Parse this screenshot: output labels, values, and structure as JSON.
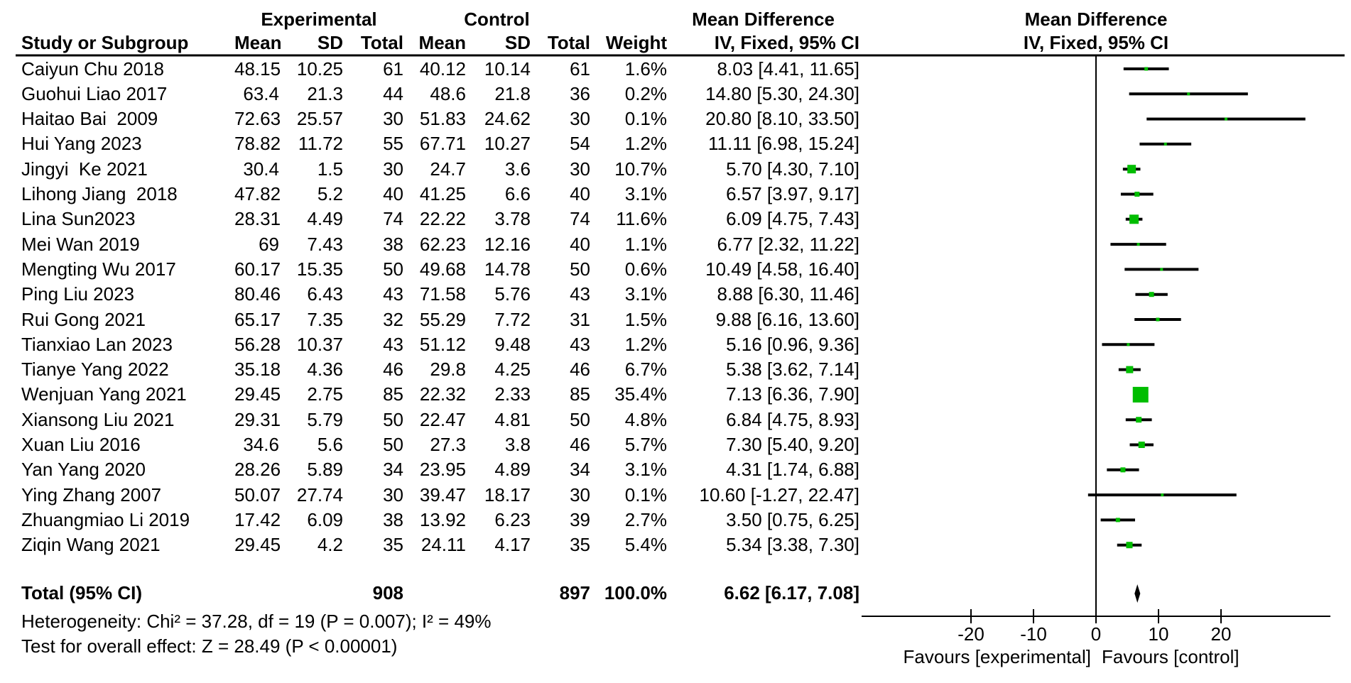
{
  "chart_data": {
    "type": "forest",
    "effect_measure": "Mean Difference",
    "model": "IV, Fixed, 95% CI",
    "headers": {
      "study": "Study or Subgroup",
      "group_experimental": "Experimental",
      "group_control": "Control",
      "mean": "Mean",
      "sd": "SD",
      "total": "Total",
      "weight": "Weight",
      "effect": "Mean Difference",
      "method_ci": "IV, Fixed, 95% CI"
    },
    "studies": [
      {
        "name": "Caiyun Chu 2018",
        "exp_mean": "48.15",
        "exp_sd": "10.25",
        "exp_total": "61",
        "ctl_mean": "40.12",
        "ctl_sd": "10.14",
        "ctl_total": "61",
        "weight": "1.6%",
        "ci_text": "8.03 [4.41, 11.65]",
        "md": 8.03,
        "lo": 4.41,
        "hi": 11.65,
        "weight_pct": 1.6
      },
      {
        "name": "Guohui Liao 2017",
        "exp_mean": "63.4",
        "exp_sd": "21.3",
        "exp_total": "44",
        "ctl_mean": "48.6",
        "ctl_sd": "21.8",
        "ctl_total": "36",
        "weight": "0.2%",
        "ci_text": "14.80 [5.30, 24.30]",
        "md": 14.8,
        "lo": 5.3,
        "hi": 24.3,
        "weight_pct": 0.2
      },
      {
        "name": "Haitao Bai  2009",
        "exp_mean": "72.63",
        "exp_sd": "25.57",
        "exp_total": "30",
        "ctl_mean": "51.83",
        "ctl_sd": "24.62",
        "ctl_total": "30",
        "weight": "0.1%",
        "ci_text": "20.80 [8.10, 33.50]",
        "md": 20.8,
        "lo": 8.1,
        "hi": 33.5,
        "weight_pct": 0.1
      },
      {
        "name": "Hui Yang 2023",
        "exp_mean": "78.82",
        "exp_sd": "11.72",
        "exp_total": "55",
        "ctl_mean": "67.71",
        "ctl_sd": "10.27",
        "ctl_total": "54",
        "weight": "1.2%",
        "ci_text": "11.11 [6.98, 15.24]",
        "md": 11.11,
        "lo": 6.98,
        "hi": 15.24,
        "weight_pct": 1.2
      },
      {
        "name": "Jingyi  Ke 2021",
        "exp_mean": "30.4",
        "exp_sd": "1.5",
        "exp_total": "30",
        "ctl_mean": "24.7",
        "ctl_sd": "3.6",
        "ctl_total": "30",
        "weight": "10.7%",
        "ci_text": "5.70 [4.30, 7.10]",
        "md": 5.7,
        "lo": 4.3,
        "hi": 7.1,
        "weight_pct": 10.7
      },
      {
        "name": "Lihong Jiang  2018",
        "exp_mean": "47.82",
        "exp_sd": "5.2",
        "exp_total": "40",
        "ctl_mean": "41.25",
        "ctl_sd": "6.6",
        "ctl_total": "40",
        "weight": "3.1%",
        "ci_text": "6.57 [3.97, 9.17]",
        "md": 6.57,
        "lo": 3.97,
        "hi": 9.17,
        "weight_pct": 3.1
      },
      {
        "name": "Lina Sun2023",
        "exp_mean": "28.31",
        "exp_sd": "4.49",
        "exp_total": "74",
        "ctl_mean": "22.22",
        "ctl_sd": "3.78",
        "ctl_total": "74",
        "weight": "11.6%",
        "ci_text": "6.09 [4.75, 7.43]",
        "md": 6.09,
        "lo": 4.75,
        "hi": 7.43,
        "weight_pct": 11.6
      },
      {
        "name": "Mei Wan 2019",
        "exp_mean": "69",
        "exp_sd": "7.43",
        "exp_total": "38",
        "ctl_mean": "62.23",
        "ctl_sd": "12.16",
        "ctl_total": "40",
        "weight": "1.1%",
        "ci_text": "6.77 [2.32, 11.22]",
        "md": 6.77,
        "lo": 2.32,
        "hi": 11.22,
        "weight_pct": 1.1
      },
      {
        "name": "Mengting Wu 2017",
        "exp_mean": "60.17",
        "exp_sd": "15.35",
        "exp_total": "50",
        "ctl_mean": "49.68",
        "ctl_sd": "14.78",
        "ctl_total": "50",
        "weight": "0.6%",
        "ci_text": "10.49 [4.58, 16.40]",
        "md": 10.49,
        "lo": 4.58,
        "hi": 16.4,
        "weight_pct": 0.6
      },
      {
        "name": "Ping Liu 2023",
        "exp_mean": "80.46",
        "exp_sd": "6.43",
        "exp_total": "43",
        "ctl_mean": "71.58",
        "ctl_sd": "5.76",
        "ctl_total": "43",
        "weight": "3.1%",
        "ci_text": "8.88 [6.30, 11.46]",
        "md": 8.88,
        "lo": 6.3,
        "hi": 11.46,
        "weight_pct": 3.1
      },
      {
        "name": "Rui Gong 2021",
        "exp_mean": "65.17",
        "exp_sd": "7.35",
        "exp_total": "32",
        "ctl_mean": "55.29",
        "ctl_sd": "7.72",
        "ctl_total": "31",
        "weight": "1.5%",
        "ci_text": "9.88 [6.16, 13.60]",
        "md": 9.88,
        "lo": 6.16,
        "hi": 13.6,
        "weight_pct": 1.5
      },
      {
        "name": "Tianxiao Lan 2023",
        "exp_mean": "56.28",
        "exp_sd": "10.37",
        "exp_total": "43",
        "ctl_mean": "51.12",
        "ctl_sd": "9.48",
        "ctl_total": "43",
        "weight": "1.2%",
        "ci_text": "5.16 [0.96, 9.36]",
        "md": 5.16,
        "lo": 0.96,
        "hi": 9.36,
        "weight_pct": 1.2
      },
      {
        "name": "Tianye Yang 2022",
        "exp_mean": "35.18",
        "exp_sd": "4.36",
        "exp_total": "46",
        "ctl_mean": "29.8",
        "ctl_sd": "4.25",
        "ctl_total": "46",
        "weight": "6.7%",
        "ci_text": "5.38 [3.62, 7.14]",
        "md": 5.38,
        "lo": 3.62,
        "hi": 7.14,
        "weight_pct": 6.7
      },
      {
        "name": "Wenjuan Yang 2021",
        "exp_mean": "29.45",
        "exp_sd": "2.75",
        "exp_total": "85",
        "ctl_mean": "22.32",
        "ctl_sd": "2.33",
        "ctl_total": "85",
        "weight": "35.4%",
        "ci_text": "7.13 [6.36, 7.90]",
        "md": 7.13,
        "lo": 6.36,
        "hi": 7.9,
        "weight_pct": 35.4
      },
      {
        "name": "Xiansong Liu 2021",
        "exp_mean": "29.31",
        "exp_sd": "5.79",
        "exp_total": "50",
        "ctl_mean": "22.47",
        "ctl_sd": "4.81",
        "ctl_total": "50",
        "weight": "4.8%",
        "ci_text": "6.84 [4.75, 8.93]",
        "md": 6.84,
        "lo": 4.75,
        "hi": 8.93,
        "weight_pct": 4.8
      },
      {
        "name": "Xuan Liu 2016",
        "exp_mean": "34.6",
        "exp_sd": "5.6",
        "exp_total": "50",
        "ctl_mean": "27.3",
        "ctl_sd": "3.8",
        "ctl_total": "46",
        "weight": "5.7%",
        "ci_text": "7.30 [5.40, 9.20]",
        "md": 7.3,
        "lo": 5.4,
        "hi": 9.2,
        "weight_pct": 5.7
      },
      {
        "name": "Yan Yang 2020",
        "exp_mean": "28.26",
        "exp_sd": "5.89",
        "exp_total": "34",
        "ctl_mean": "23.95",
        "ctl_sd": "4.89",
        "ctl_total": "34",
        "weight": "3.1%",
        "ci_text": "4.31 [1.74, 6.88]",
        "md": 4.31,
        "lo": 1.74,
        "hi": 6.88,
        "weight_pct": 3.1
      },
      {
        "name": "Ying Zhang 2007",
        "exp_mean": "50.07",
        "exp_sd": "27.74",
        "exp_total": "30",
        "ctl_mean": "39.47",
        "ctl_sd": "18.17",
        "ctl_total": "30",
        "weight": "0.1%",
        "ci_text": "10.60 [-1.27, 22.47]",
        "md": 10.6,
        "lo": -1.27,
        "hi": 22.47,
        "weight_pct": 0.1
      },
      {
        "name": "Zhuangmiao Li 2019",
        "exp_mean": "17.42",
        "exp_sd": "6.09",
        "exp_total": "38",
        "ctl_mean": "13.92",
        "ctl_sd": "6.23",
        "ctl_total": "39",
        "weight": "2.7%",
        "ci_text": "3.50 [0.75, 6.25]",
        "md": 3.5,
        "lo": 0.75,
        "hi": 6.25,
        "weight_pct": 2.7
      },
      {
        "name": "Ziqin Wang 2021",
        "exp_mean": "29.45",
        "exp_sd": "4.2",
        "exp_total": "35",
        "ctl_mean": "24.11",
        "ctl_sd": "4.17",
        "ctl_total": "35",
        "weight": "5.4%",
        "ci_text": "5.34 [3.38, 7.30]",
        "md": 5.34,
        "lo": 3.38,
        "hi": 7.3,
        "weight_pct": 5.4
      }
    ],
    "total": {
      "label": "Total (95% CI)",
      "exp_total": "908",
      "ctl_total": "897",
      "weight": "100.0%",
      "ci_text": "6.62 [6.17, 7.08]",
      "md": 6.62,
      "lo": 6.17,
      "hi": 7.08
    },
    "heterogeneity": "Heterogeneity: Chi² = 37.28, df = 19 (P = 0.007); I² = 49%",
    "overall_effect": "Test for overall effect: Z = 28.49 (P < 0.00001)",
    "axis": {
      "ticks": [
        -20,
        -10,
        0,
        10,
        20
      ],
      "range": [
        -37.5,
        37.5
      ],
      "favours_left": "Favours [experimental]",
      "favours_right": "Favours [control]"
    },
    "colors": {
      "marker": "#00bd00",
      "line": "#000000",
      "diamond": "#000000"
    }
  }
}
